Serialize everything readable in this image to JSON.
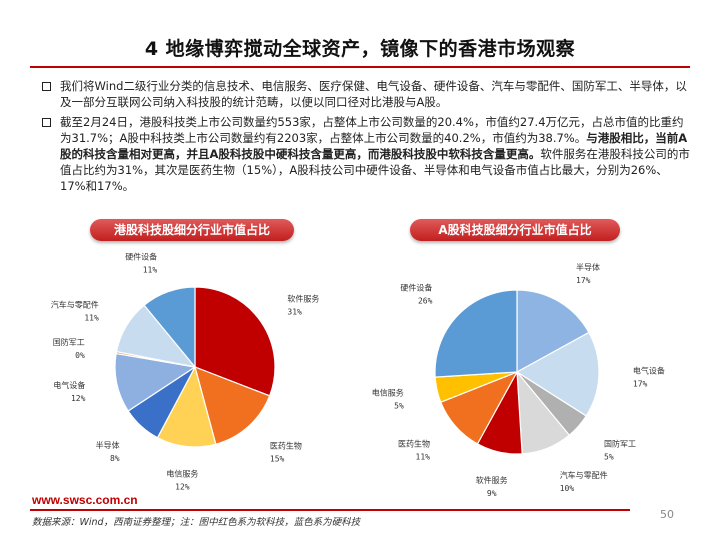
{
  "title": "4 地缘博弈搅动全球资产，镜像下的香港市场观察",
  "bullets": [
    {
      "text": "我们将Wind二级行业分类的信息技术、电信服务、医疗保健、电气设备、硬件设备、汽车与零配件、国防军工、半导体，以及一部分互联网公司纳入科技股的统计范畴，以便以同口径对比港股与A股。"
    },
    {
      "text_before": "截至2月24日，港股科技类上市公司数量约553家，占整体上市公司数量的20.4%，市值约27.4万亿元，占总市值的比重约为31.7%；A股中科技类上市公司数量约有2203家，占整体上市公司数量的40.2%，市值约为38.7%。",
      "text_bold": "与港股相比，当前A股的科技含量相对更高，并且A股科技股中硬科技含量更高，而港股科技股中软科技含量更高。",
      "text_after": "软件服务在港股科技公司的市值占比约为31%，其次是医药生物（15%），A股科技公司中硬件设备、半导体和电气设备市值占比最大，分别为26%、17%和17%。"
    }
  ],
  "chart_labels": {
    "hk": "港股科技股细分行业市值占比",
    "a": "A股科技股细分行业市值占比"
  },
  "chart_data": [
    {
      "type": "pie",
      "title": "港股科技股细分行业市值占比",
      "slices": [
        {
          "name": "软件服务",
          "pct_label": "31%",
          "value": 31,
          "color": "#c00000"
        },
        {
          "name": "医药生物",
          "pct_label": "15%",
          "value": 15,
          "color": "#f07020"
        },
        {
          "name": "电信服务",
          "pct_label": "12%",
          "value": 12,
          "color": "#ffd256"
        },
        {
          "name": "半导体",
          "pct_label": "8%",
          "value": 8,
          "color": "#3a70c8"
        },
        {
          "name": "电气设备",
          "pct_label": "12%",
          "value": 12,
          "color": "#8eb0e0"
        },
        {
          "name": "国防军工",
          "pct_label": "0%",
          "value": 0.4,
          "color": "#f4a060"
        },
        {
          "name": "汽车与零配件",
          "pct_label": "11%",
          "value": 11,
          "color": "#c8dcf0"
        },
        {
          "name": "硬件设备",
          "pct_label": "11%",
          "value": 11,
          "color": "#5b9bd5"
        }
      ]
    },
    {
      "type": "pie",
      "title": "A股科技股细分行业市值占比",
      "slices": [
        {
          "name": "半导体",
          "pct_label": "17%",
          "value": 17,
          "color": "#8eb4e3"
        },
        {
          "name": "电气设备",
          "pct_label": "17%",
          "value": 17,
          "color": "#c8dcf0"
        },
        {
          "name": "国防军工",
          "pct_label": "5%",
          "value": 5,
          "color": "#b0b0b0"
        },
        {
          "name": "汽车与零配件",
          "pct_label": "10%",
          "value": 10,
          "color": "#d9d9d9"
        },
        {
          "name": "软件服务",
          "pct_label": "9%",
          "value": 9,
          "color": "#c00000"
        },
        {
          "name": "医药生物",
          "pct_label": "11%",
          "value": 11,
          "color": "#f07020"
        },
        {
          "name": "电信服务",
          "pct_label": "5%",
          "value": 5,
          "color": "#ffc000"
        },
        {
          "name": "硬件设备",
          "pct_label": "26%",
          "value": 26,
          "color": "#5b9bd5"
        }
      ]
    }
  ],
  "footer": {
    "url": "www.swsc.com.cn",
    "source": "数据来源：Wind，西南证券整理；注：图中红色系为软科技，蓝色系为硬科技",
    "page": "50"
  }
}
